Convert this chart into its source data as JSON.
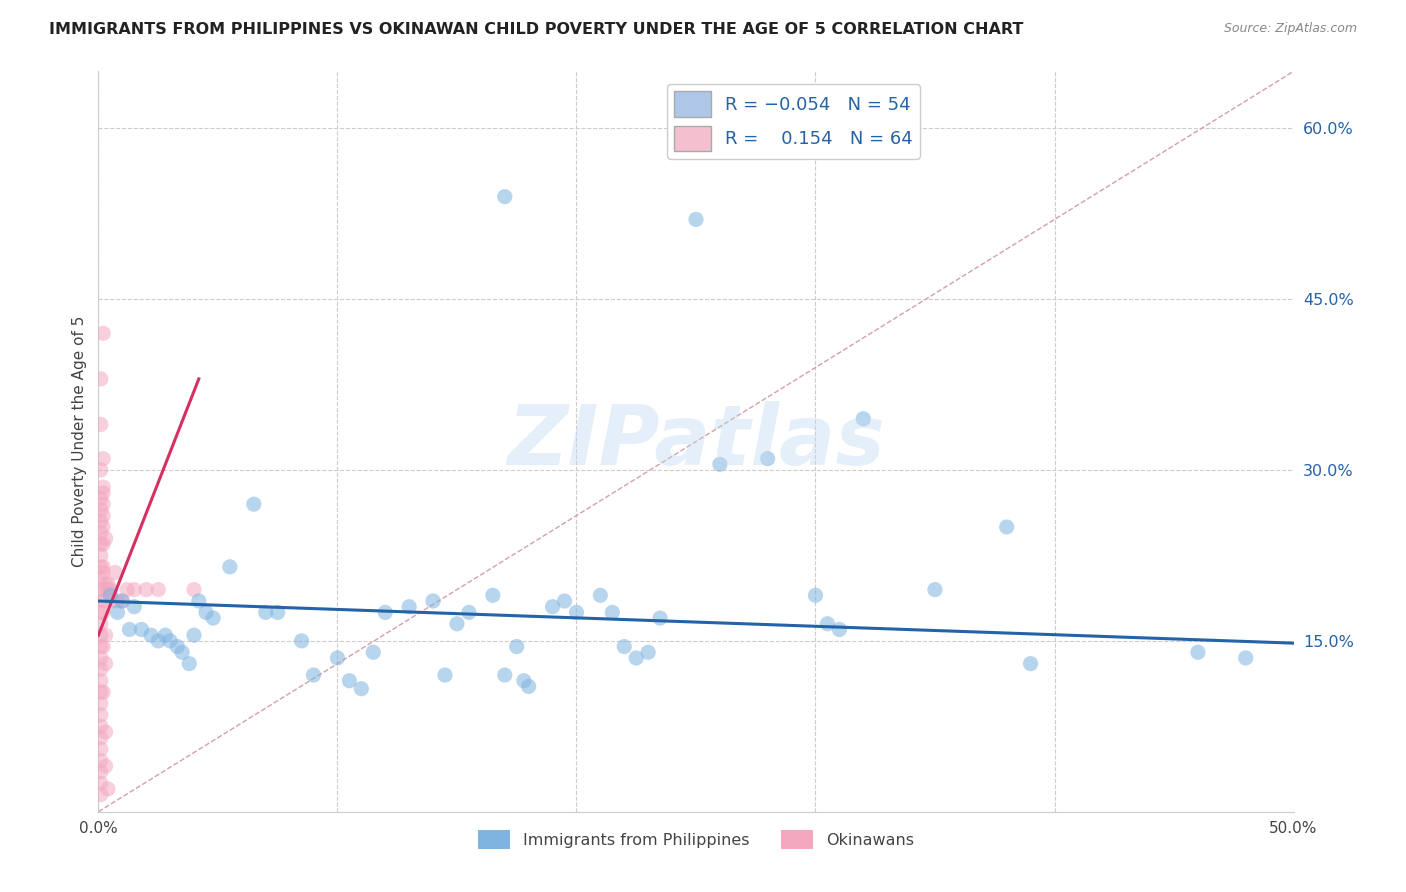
{
  "title": "IMMIGRANTS FROM PHILIPPINES VS OKINAWAN CHILD POVERTY UNDER THE AGE OF 5 CORRELATION CHART",
  "source": "Source: ZipAtlas.com",
  "ylabel": "Child Poverty Under the Age of 5",
  "xlim": [
    0.0,
    0.5
  ],
  "ylim": [
    0.0,
    0.65
  ],
  "xtick_positions": [
    0.0,
    0.1,
    0.2,
    0.3,
    0.4,
    0.5
  ],
  "xticklabels": [
    "0.0%",
    "",
    "",
    "",
    "",
    "50.0%"
  ],
  "yticks_right": [
    0.15,
    0.3,
    0.45,
    0.6
  ],
  "ytick_labels_right": [
    "15.0%",
    "30.0%",
    "45.0%",
    "60.0%"
  ],
  "blue_color": "#7fb3e0",
  "pink_color": "#f4a8c0",
  "blue_line_color": "#2563a8",
  "pink_line_color": "#d63060",
  "ref_line_color": "#d4a0a8",
  "watermark": "ZIPatlas",
  "blue_scatter": [
    [
      0.005,
      0.19
    ],
    [
      0.008,
      0.175
    ],
    [
      0.01,
      0.185
    ],
    [
      0.013,
      0.16
    ],
    [
      0.015,
      0.18
    ],
    [
      0.018,
      0.16
    ],
    [
      0.022,
      0.155
    ],
    [
      0.025,
      0.15
    ],
    [
      0.028,
      0.155
    ],
    [
      0.03,
      0.15
    ],
    [
      0.033,
      0.145
    ],
    [
      0.035,
      0.14
    ],
    [
      0.038,
      0.13
    ],
    [
      0.04,
      0.155
    ],
    [
      0.042,
      0.185
    ],
    [
      0.045,
      0.175
    ],
    [
      0.048,
      0.17
    ],
    [
      0.055,
      0.215
    ],
    [
      0.065,
      0.27
    ],
    [
      0.07,
      0.175
    ],
    [
      0.075,
      0.175
    ],
    [
      0.085,
      0.15
    ],
    [
      0.09,
      0.12
    ],
    [
      0.1,
      0.135
    ],
    [
      0.105,
      0.115
    ],
    [
      0.11,
      0.108
    ],
    [
      0.115,
      0.14
    ],
    [
      0.12,
      0.175
    ],
    [
      0.13,
      0.18
    ],
    [
      0.14,
      0.185
    ],
    [
      0.145,
      0.12
    ],
    [
      0.15,
      0.165
    ],
    [
      0.155,
      0.175
    ],
    [
      0.165,
      0.19
    ],
    [
      0.17,
      0.12
    ],
    [
      0.175,
      0.145
    ],
    [
      0.178,
      0.115
    ],
    [
      0.18,
      0.11
    ],
    [
      0.19,
      0.18
    ],
    [
      0.195,
      0.185
    ],
    [
      0.2,
      0.175
    ],
    [
      0.21,
      0.19
    ],
    [
      0.215,
      0.175
    ],
    [
      0.22,
      0.145
    ],
    [
      0.225,
      0.135
    ],
    [
      0.23,
      0.14
    ],
    [
      0.235,
      0.17
    ],
    [
      0.26,
      0.305
    ],
    [
      0.28,
      0.31
    ],
    [
      0.3,
      0.19
    ],
    [
      0.305,
      0.165
    ],
    [
      0.31,
      0.16
    ],
    [
      0.35,
      0.195
    ],
    [
      0.38,
      0.25
    ],
    [
      0.46,
      0.14
    ],
    [
      0.25,
      0.52
    ],
    [
      0.32,
      0.345
    ],
    [
      0.17,
      0.54
    ],
    [
      0.48,
      0.135
    ],
    [
      0.39,
      0.13
    ]
  ],
  "pink_scatter": [
    [
      0.001,
      0.38
    ],
    [
      0.001,
      0.34
    ],
    [
      0.001,
      0.3
    ],
    [
      0.001,
      0.275
    ],
    [
      0.001,
      0.265
    ],
    [
      0.001,
      0.255
    ],
    [
      0.001,
      0.245
    ],
    [
      0.001,
      0.235
    ],
    [
      0.001,
      0.225
    ],
    [
      0.001,
      0.215
    ],
    [
      0.001,
      0.205
    ],
    [
      0.001,
      0.195
    ],
    [
      0.001,
      0.185
    ],
    [
      0.001,
      0.175
    ],
    [
      0.001,
      0.165
    ],
    [
      0.001,
      0.155
    ],
    [
      0.001,
      0.145
    ],
    [
      0.001,
      0.135
    ],
    [
      0.001,
      0.125
    ],
    [
      0.001,
      0.115
    ],
    [
      0.001,
      0.105
    ],
    [
      0.001,
      0.095
    ],
    [
      0.001,
      0.085
    ],
    [
      0.001,
      0.075
    ],
    [
      0.001,
      0.065
    ],
    [
      0.001,
      0.055
    ],
    [
      0.001,
      0.045
    ],
    [
      0.001,
      0.035
    ],
    [
      0.001,
      0.025
    ],
    [
      0.001,
      0.015
    ],
    [
      0.002,
      0.42
    ],
    [
      0.002,
      0.31
    ],
    [
      0.002,
      0.285
    ],
    [
      0.002,
      0.235
    ],
    [
      0.002,
      0.21
    ],
    [
      0.002,
      0.28
    ],
    [
      0.002,
      0.27
    ],
    [
      0.002,
      0.26
    ],
    [
      0.002,
      0.25
    ],
    [
      0.002,
      0.215
    ],
    [
      0.002,
      0.195
    ],
    [
      0.002,
      0.185
    ],
    [
      0.002,
      0.175
    ],
    [
      0.002,
      0.145
    ],
    [
      0.002,
      0.105
    ],
    [
      0.003,
      0.24
    ],
    [
      0.003,
      0.2
    ],
    [
      0.003,
      0.155
    ],
    [
      0.003,
      0.13
    ],
    [
      0.003,
      0.07
    ],
    [
      0.003,
      0.04
    ],
    [
      0.004,
      0.2
    ],
    [
      0.004,
      0.195
    ],
    [
      0.004,
      0.02
    ],
    [
      0.005,
      0.195
    ],
    [
      0.006,
      0.185
    ],
    [
      0.007,
      0.21
    ],
    [
      0.008,
      0.185
    ],
    [
      0.01,
      0.185
    ],
    [
      0.012,
      0.195
    ],
    [
      0.015,
      0.195
    ],
    [
      0.02,
      0.195
    ],
    [
      0.025,
      0.195
    ],
    [
      0.04,
      0.195
    ]
  ],
  "blue_trend_x": [
    0.0,
    0.5
  ],
  "blue_trend_y": [
    0.185,
    0.148
  ],
  "pink_trend_x": [
    0.0,
    0.042
  ],
  "pink_trend_y": [
    0.155,
    0.38
  ],
  "ref_line_x": [
    0.0,
    0.5
  ],
  "ref_line_y": [
    0.0,
    0.65
  ],
  "marker_size": 120,
  "alpha_blue": 0.55,
  "alpha_pink": 0.55,
  "grid_color": "#cccccc",
  "background_color": "#ffffff",
  "title_fontsize": 11.5,
  "axis_label_fontsize": 11,
  "legend_fontsize": 13,
  "tick_label_color": "#2563a8"
}
